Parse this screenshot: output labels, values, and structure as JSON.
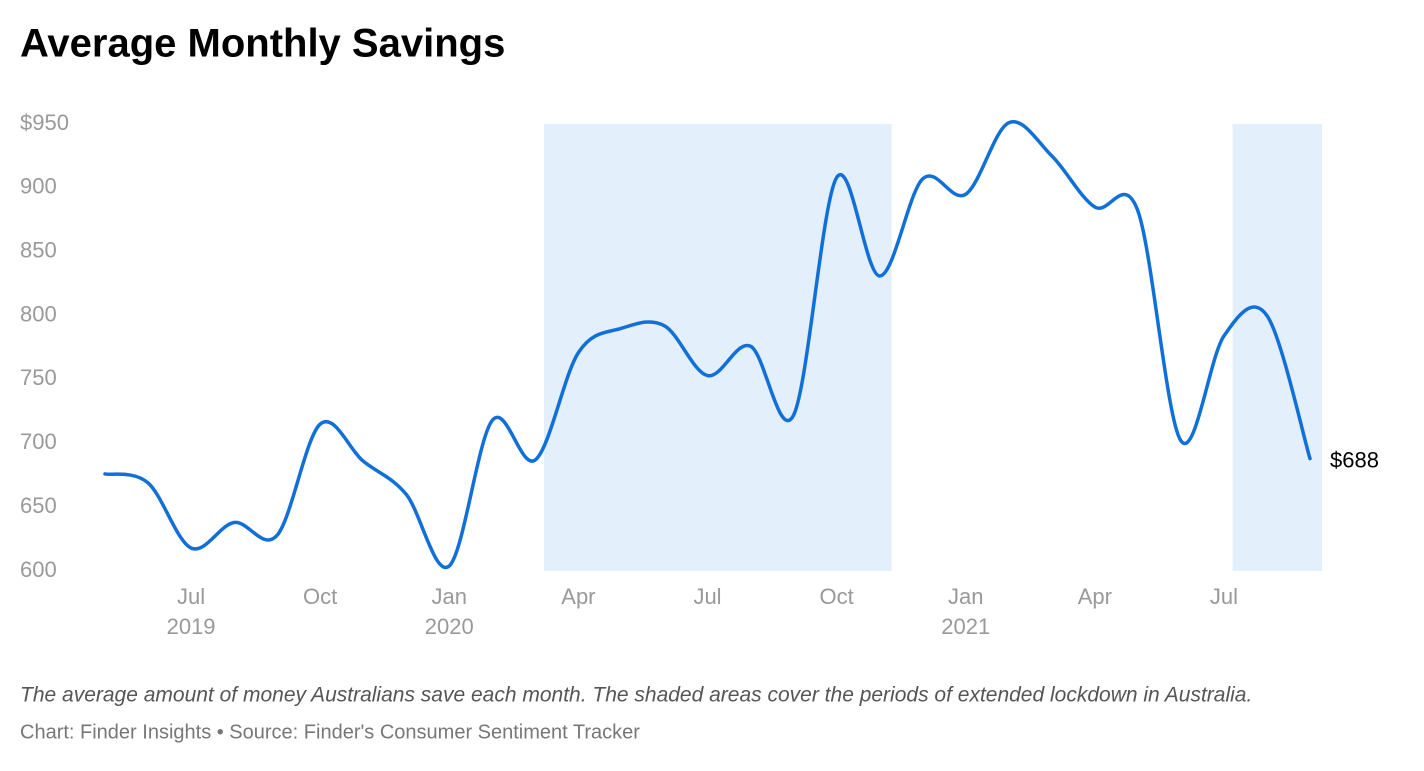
{
  "chart_data": {
    "type": "line",
    "title": "Average Monthly Savings",
    "caption": "The average amount of money Australians save each month. The shaded areas cover the periods of extended lockdown in Australia.",
    "source": "Chart: Finder Insights • Source: Finder's Consumer Sentiment Tracker",
    "x": [
      "2019-05",
      "2019-06",
      "2019-07",
      "2019-08",
      "2019-09",
      "2019-10",
      "2019-11",
      "2019-12",
      "2020-01",
      "2020-02",
      "2020-03",
      "2020-04",
      "2020-05",
      "2020-06",
      "2020-07",
      "2020-08",
      "2020-09",
      "2020-10",
      "2020-11",
      "2020-12",
      "2021-01",
      "2021-02",
      "2021-03",
      "2021-04",
      "2021-05",
      "2021-06",
      "2021-07",
      "2021-08",
      "2021-09"
    ],
    "series": [
      {
        "name": "Average monthly savings",
        "color": "#1170d8",
        "values": [
          676,
          669,
          618,
          638,
          628,
          715,
          686,
          660,
          604,
          718,
          687,
          771,
          790,
          792,
          753,
          776,
          722,
          908,
          831,
          907,
          895,
          951,
          925,
          885,
          882,
          702,
          784,
          800,
          688
        ]
      }
    ],
    "end_label": "$688",
    "shaded_periods": [
      {
        "start": "2020-03",
        "end": "2020-11"
      },
      {
        "start": "2021-07",
        "end": "2021-09"
      }
    ],
    "shade_color": "#e3effb",
    "xlim": [
      "2019-05",
      "2021-09"
    ],
    "xticks": [
      {
        "value": "2019-07",
        "label": "Jul",
        "sublabel": "2019"
      },
      {
        "value": "2019-10",
        "label": "Oct"
      },
      {
        "value": "2020-01",
        "label": "Jan",
        "sublabel": "2020"
      },
      {
        "value": "2020-04",
        "label": "Apr"
      },
      {
        "value": "2020-07",
        "label": "Jul"
      },
      {
        "value": "2020-10",
        "label": "Oct"
      },
      {
        "value": "2021-01",
        "label": "Jan",
        "sublabel": "2021"
      },
      {
        "value": "2021-04",
        "label": "Apr"
      },
      {
        "value": "2021-07",
        "label": "Jul"
      }
    ],
    "ylim": [
      600,
      950
    ],
    "yticks": [
      600,
      650,
      700,
      750,
      800,
      850,
      900,
      {
        "value": 950,
        "label": "$950"
      }
    ]
  }
}
